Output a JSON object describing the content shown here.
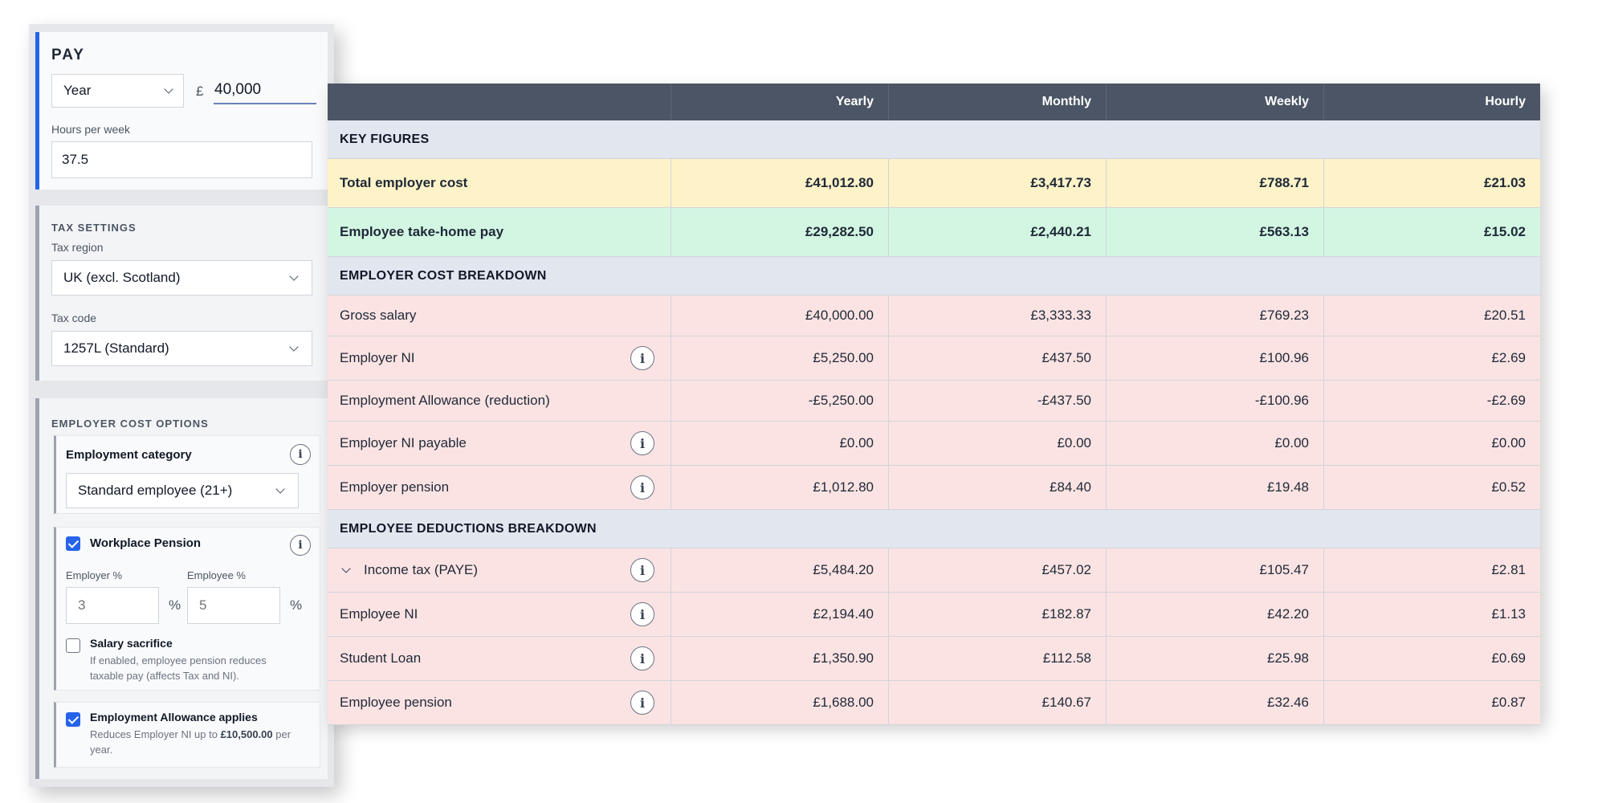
{
  "pay": {
    "title": "PAY",
    "period": "Year",
    "currency_symbol": "£",
    "salary": "40,000",
    "hours_label": "Hours per week",
    "hours": "37.5"
  },
  "tax_settings": {
    "title": "TAX SETTINGS",
    "region_label": "Tax region",
    "region": "UK (excl. Scotland)",
    "code_label": "Tax code",
    "code": "1257L (Standard)"
  },
  "employer_options": {
    "title": "EMPLOYER COST OPTIONS",
    "category_label": "Employment category",
    "category": "Standard employee (21+)",
    "pension_label": "Workplace Pension",
    "pension_checked": true,
    "employer_pct_label": "Employer %",
    "employer_pct_placeholder": "3",
    "employee_pct_label": "Employee %",
    "employee_pct_placeholder": "5",
    "pct_symbol": "%",
    "sacrifice_label": "Salary sacrifice",
    "sacrifice_checked": false,
    "sacrifice_help": "If enabled, employee pension reduces taxable pay (affects Tax and NI).",
    "allowance_label": "Employment Allowance applies",
    "allowance_checked": true,
    "allowance_help_prefix": "Reduces Employer NI up to ",
    "allowance_help_amount": "£10,500.00",
    "allowance_help_suffix": " per year."
  },
  "table": {
    "headers": [
      "",
      "Yearly",
      "Monthly",
      "Weekly",
      "Hourly"
    ],
    "sections": {
      "key_figures": "KEY FIGURES",
      "employer_breakdown": "EMPLOYER COST BREAKDOWN",
      "employee_breakdown": "EMPLOYEE DEDUCTIONS BREAKDOWN"
    },
    "total_employer_cost": {
      "label": "Total employer cost",
      "values": [
        "£41,012.80",
        "£3,417.73",
        "£788.71",
        "£21.03"
      ]
    },
    "take_home": {
      "label": "Employee take-home pay",
      "values": [
        "£29,282.50",
        "£2,440.21",
        "£563.13",
        "£15.02"
      ]
    },
    "gross_salary": {
      "label": "Gross salary",
      "values": [
        "£40,000.00",
        "£3,333.33",
        "£769.23",
        "£20.51"
      ]
    },
    "employer_ni": {
      "label": "Employer NI",
      "values": [
        "£5,250.00",
        "£437.50",
        "£100.96",
        "£2.69"
      ]
    },
    "employment_allowance": {
      "label": "Employment Allowance (reduction)",
      "values": [
        "-£5,250.00",
        "-£437.50",
        "-£100.96",
        "-£2.69"
      ]
    },
    "employer_ni_payable": {
      "label": "Employer NI payable",
      "values": [
        "£0.00",
        "£0.00",
        "£0.00",
        "£0.00"
      ]
    },
    "employer_pension": {
      "label": "Employer pension",
      "values": [
        "£1,012.80",
        "£84.40",
        "£19.48",
        "£0.52"
      ]
    },
    "income_tax": {
      "label": "Income tax (PAYE)",
      "values": [
        "£5,484.20",
        "£457.02",
        "£105.47",
        "£2.81"
      ]
    },
    "employee_ni": {
      "label": "Employee NI",
      "values": [
        "£2,194.40",
        "£182.87",
        "£42.20",
        "£1.13"
      ]
    },
    "student_loan": {
      "label": "Student Loan",
      "values": [
        "£1,350.90",
        "£112.58",
        "£25.98",
        "£0.69"
      ]
    },
    "employee_pension": {
      "label": "Employee pension",
      "values": [
        "£1,688.00",
        "£140.67",
        "£32.46",
        "£0.87"
      ]
    },
    "info_glyph": "i"
  },
  "colors": {
    "accent": "#2563eb",
    "header_bg": "#4b5565",
    "section_bg": "#e2e6ee",
    "employer_cost_bg": "#fdf2c8",
    "take_home_bg": "#d3f6e3",
    "deduction_bg": "#fbe3e3"
  }
}
